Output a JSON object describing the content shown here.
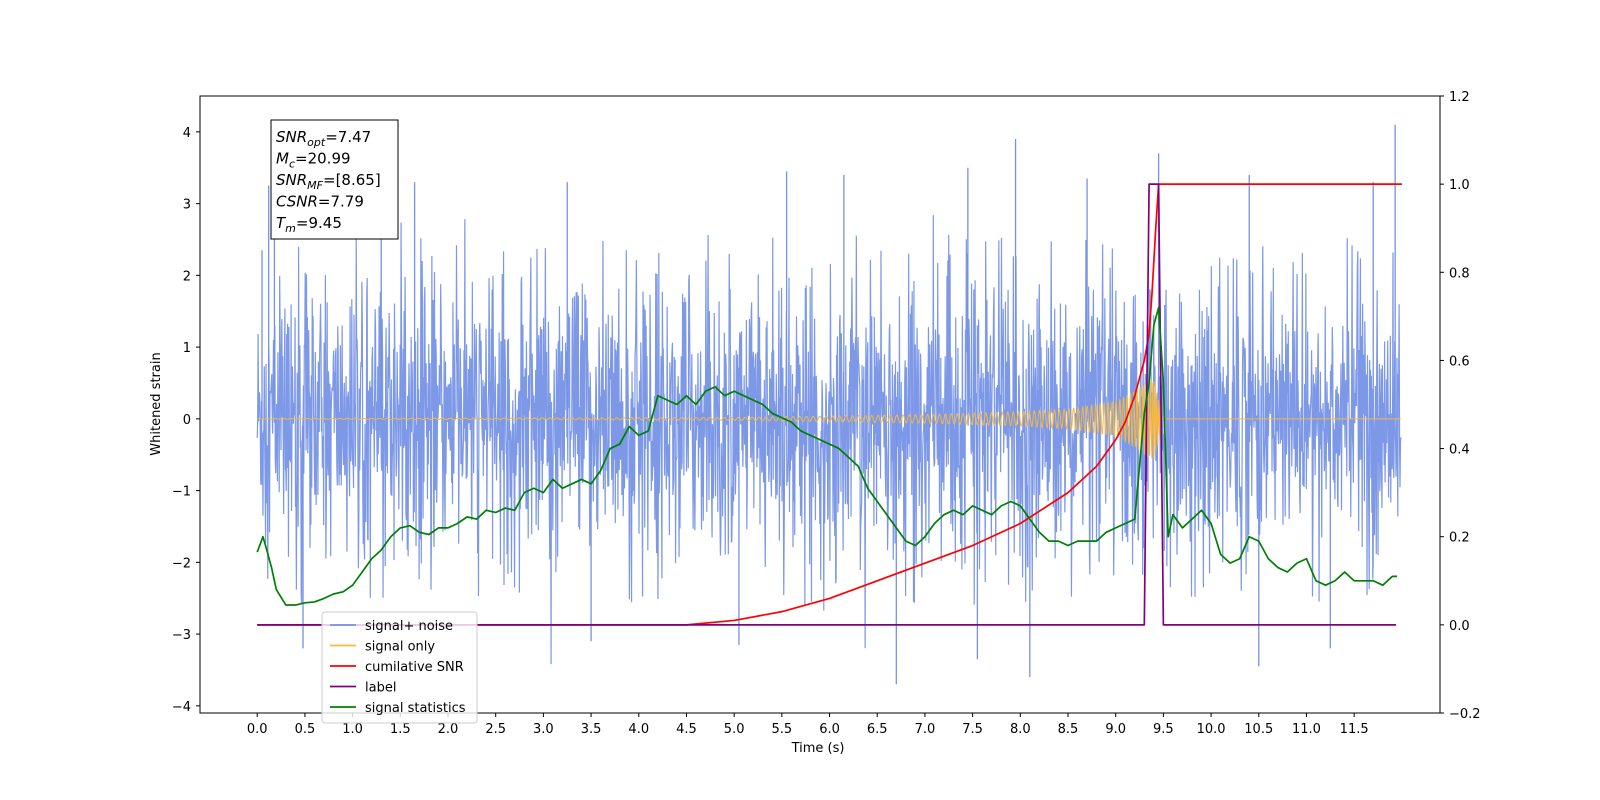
{
  "chart_data": {
    "type": "line",
    "xlabel": "Time (s)",
    "ylabel_left": "Whitened strain",
    "ylabel_right": "",
    "xlim": [
      -0.6,
      12.4
    ],
    "ylim_left": [
      -4.1,
      4.5
    ],
    "ylim_right": [
      -0.2,
      1.2
    ],
    "x_ticks": [
      "0.0",
      "0.5",
      "1.0",
      "1.5",
      "2.0",
      "2.5",
      "3.0",
      "3.5",
      "4.0",
      "4.5",
      "5.0",
      "5.5",
      "6.0",
      "6.5",
      "7.0",
      "7.5",
      "8.0",
      "8.5",
      "9.0",
      "9.5",
      "10.0",
      "10.5",
      "11.0",
      "11.5"
    ],
    "y_ticks_left": [
      "−4",
      "−3",
      "−2",
      "−1",
      "0",
      "1",
      "2",
      "3",
      "4"
    ],
    "y_ticks_right": [
      "−0.2",
      "0.0",
      "0.2",
      "0.4",
      "0.6",
      "0.8",
      "1.0",
      "1.2"
    ],
    "grid": false,
    "legend_position": "lower-left",
    "annotation": {
      "lines": [
        {
          "sym": "SNR",
          "sub": "opt",
          "text": "=7.47"
        },
        {
          "sym": "M",
          "sub": "c",
          "text": "=20.99"
        },
        {
          "sym": "SNR",
          "sub": "MF",
          "text": "=[8.65]"
        },
        {
          "sym": "CSNR",
          "sub": "",
          "text": "=7.79"
        },
        {
          "sym": "T",
          "sub": "m",
          "text": "=9.45"
        }
      ]
    },
    "series": [
      {
        "name": "signal+ noise",
        "axis": "left",
        "color": "#7592e6",
        "description_kind": "noise",
        "x_range": [
          0,
          11.99
        ],
        "envelope_typical": [
          -1.6,
          1.8
        ],
        "spikes": [
          {
            "x": 0.05,
            "y": 2.35
          },
          {
            "x": 0.12,
            "y": 3.25
          },
          {
            "x": 0.18,
            "y": 2.6
          },
          {
            "x": 0.48,
            "y": -3.2
          },
          {
            "x": 1.3,
            "y": 3.05
          },
          {
            "x": 1.65,
            "y": 3.3
          },
          {
            "x": 3.25,
            "y": 3.3
          },
          {
            "x": 3.5,
            "y": -3.1
          },
          {
            "x": 5.05,
            "y": -3.15
          },
          {
            "x": 5.55,
            "y": 3.45
          },
          {
            "x": 6.15,
            "y": 3.4
          },
          {
            "x": 6.7,
            "y": -3.7
          },
          {
            "x": 7.45,
            "y": 3.5
          },
          {
            "x": 7.55,
            "y": -3.35
          },
          {
            "x": 7.95,
            "y": 3.9
          },
          {
            "x": 8.1,
            "y": -3.6
          },
          {
            "x": 8.7,
            "y": 3.35
          },
          {
            "x": 9.45,
            "y": 3.7
          },
          {
            "x": 10.4,
            "y": 3.4
          },
          {
            "x": 10.5,
            "y": -3.45
          },
          {
            "x": 11.25,
            "y": -3.2
          },
          {
            "x": 11.7,
            "y": 3.3
          },
          {
            "x": 11.93,
            "y": 4.1
          }
        ]
      },
      {
        "name": "signal only",
        "axis": "left",
        "color": "#f5b942",
        "description_kind": "chirp",
        "x_range": [
          0,
          11.99
        ],
        "amplitude_points": [
          [
            0,
            0.003
          ],
          [
            5.0,
            0.02
          ],
          [
            7.0,
            0.06
          ],
          [
            8.0,
            0.1
          ],
          [
            8.5,
            0.14
          ],
          [
            9.0,
            0.25
          ],
          [
            9.2,
            0.4
          ],
          [
            9.4,
            0.6
          ],
          [
            9.5,
            0.0
          ]
        ]
      },
      {
        "name": "cumilative SNR",
        "axis": "right",
        "color": "#ff0000",
        "x": [
          0,
          4.5,
          5.0,
          5.5,
          6.0,
          6.5,
          7.0,
          7.5,
          8.0,
          8.5,
          8.8,
          9.0,
          9.1,
          9.2,
          9.25,
          9.3,
          9.35,
          9.38,
          9.42,
          9.45,
          9.5,
          12.0
        ],
        "values": [
          0,
          0.0,
          0.01,
          0.03,
          0.06,
          0.1,
          0.14,
          0.18,
          0.23,
          0.3,
          0.36,
          0.42,
          0.46,
          0.52,
          0.56,
          0.6,
          0.66,
          0.75,
          0.9,
          1.0,
          1.0,
          1.0
        ]
      },
      {
        "name": "label",
        "axis": "right",
        "color": "#800080",
        "x": [
          0,
          9.3,
          9.35,
          9.45,
          9.5,
          11.94
        ],
        "values": [
          0,
          0,
          1,
          1,
          0,
          0
        ]
      },
      {
        "name": "signal statistics",
        "axis": "right",
        "color": "#007f00",
        "x": [
          0,
          0.06,
          0.1,
          0.15,
          0.2,
          0.3,
          0.4,
          0.5,
          0.6,
          0.7,
          0.8,
          0.9,
          1.0,
          1.1,
          1.2,
          1.3,
          1.4,
          1.5,
          1.6,
          1.7,
          1.8,
          1.9,
          2.0,
          2.1,
          2.2,
          2.3,
          2.4,
          2.5,
          2.6,
          2.7,
          2.8,
          2.9,
          3.0,
          3.1,
          3.2,
          3.3,
          3.4,
          3.5,
          3.6,
          3.7,
          3.8,
          3.9,
          4.0,
          4.1,
          4.2,
          4.3,
          4.4,
          4.5,
          4.6,
          4.7,
          4.8,
          4.9,
          5.0,
          5.1,
          5.2,
          5.3,
          5.4,
          5.5,
          5.6,
          5.7,
          5.8,
          5.9,
          6.0,
          6.1,
          6.2,
          6.3,
          6.4,
          6.5,
          6.6,
          6.7,
          6.8,
          6.9,
          7.0,
          7.1,
          7.2,
          7.3,
          7.4,
          7.5,
          7.6,
          7.7,
          7.8,
          7.9,
          8.0,
          8.1,
          8.2,
          8.3,
          8.4,
          8.5,
          8.6,
          8.7,
          8.8,
          8.9,
          9.0,
          9.1,
          9.2,
          9.3,
          9.35,
          9.4,
          9.45,
          9.5,
          9.55,
          9.6,
          9.7,
          9.8,
          9.9,
          10.0,
          10.1,
          10.2,
          10.3,
          10.4,
          10.5,
          10.6,
          10.7,
          10.8,
          10.9,
          11.0,
          11.1,
          11.2,
          11.3,
          11.4,
          11.5,
          11.6,
          11.7,
          11.8,
          11.9,
          11.95
        ],
        "values": [
          0.165,
          0.2,
          0.17,
          0.13,
          0.08,
          0.045,
          0.045,
          0.05,
          0.052,
          0.06,
          0.07,
          0.075,
          0.09,
          0.12,
          0.15,
          0.17,
          0.2,
          0.22,
          0.225,
          0.21,
          0.205,
          0.22,
          0.22,
          0.23,
          0.245,
          0.24,
          0.26,
          0.255,
          0.265,
          0.26,
          0.3,
          0.31,
          0.3,
          0.33,
          0.31,
          0.32,
          0.33,
          0.32,
          0.35,
          0.4,
          0.41,
          0.45,
          0.43,
          0.44,
          0.52,
          0.51,
          0.5,
          0.52,
          0.5,
          0.53,
          0.54,
          0.52,
          0.53,
          0.52,
          0.51,
          0.5,
          0.48,
          0.47,
          0.46,
          0.44,
          0.43,
          0.42,
          0.41,
          0.4,
          0.38,
          0.36,
          0.31,
          0.28,
          0.25,
          0.22,
          0.19,
          0.18,
          0.2,
          0.23,
          0.25,
          0.26,
          0.25,
          0.27,
          0.26,
          0.25,
          0.27,
          0.28,
          0.27,
          0.24,
          0.21,
          0.19,
          0.19,
          0.18,
          0.19,
          0.19,
          0.19,
          0.21,
          0.22,
          0.23,
          0.24,
          0.48,
          0.55,
          0.68,
          0.72,
          0.55,
          0.2,
          0.25,
          0.22,
          0.24,
          0.26,
          0.23,
          0.16,
          0.14,
          0.15,
          0.2,
          0.19,
          0.15,
          0.13,
          0.12,
          0.14,
          0.15,
          0.1,
          0.09,
          0.1,
          0.12,
          0.1,
          0.1,
          0.1,
          0.09,
          0.11,
          0.11
        ]
      }
    ]
  }
}
